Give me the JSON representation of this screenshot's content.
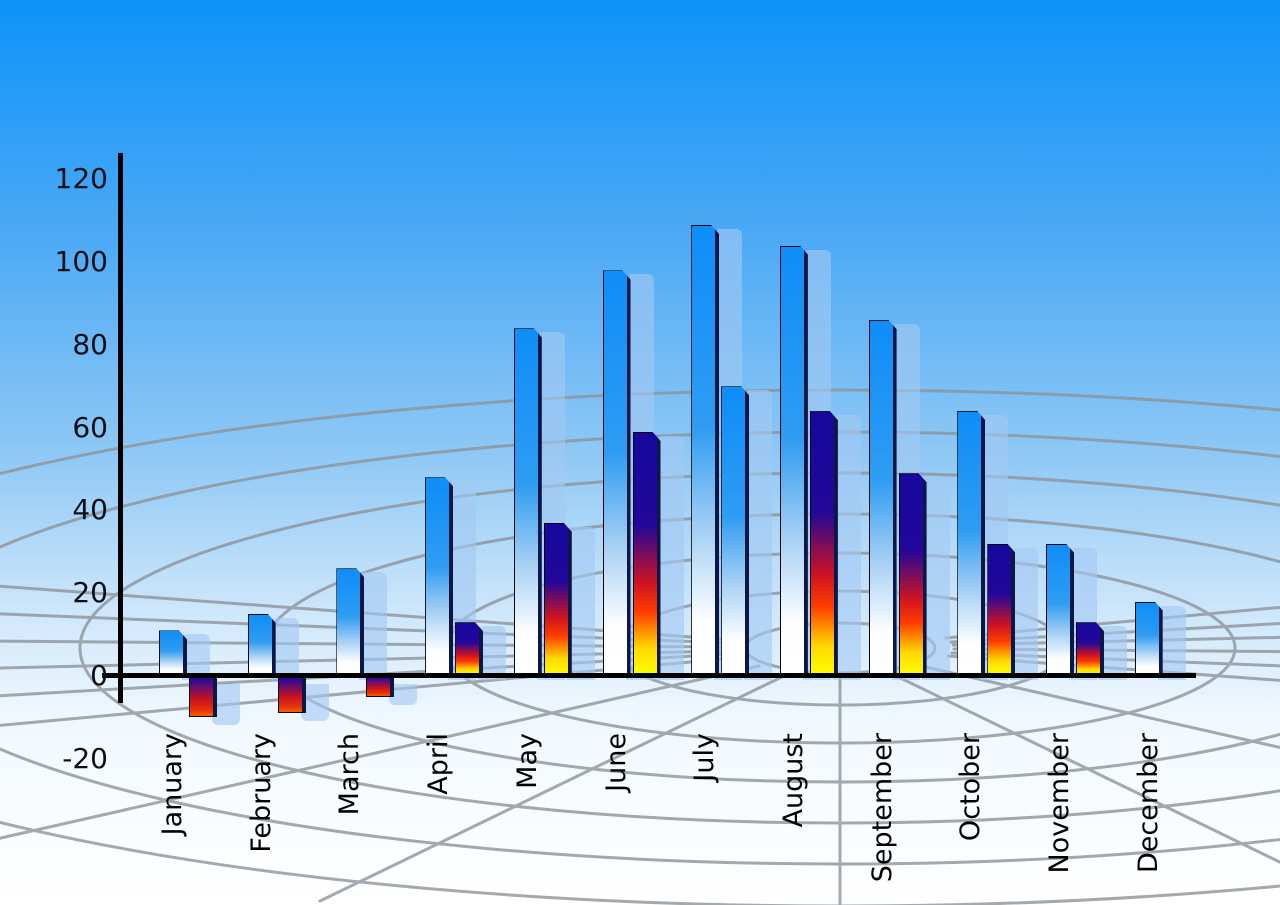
{
  "chart_data": {
    "type": "bar",
    "title": "",
    "xlabel": "",
    "ylabel": "",
    "categories": [
      "January",
      "February",
      "March",
      "April",
      "May",
      "June",
      "July",
      "August",
      "September",
      "October",
      "November",
      "December"
    ],
    "series": [
      {
        "name": "primary-blue-bars",
        "values": [
          11,
          15,
          26,
          48,
          84,
          98,
          109,
          104,
          86,
          64,
          32,
          18
        ]
      },
      {
        "name": "secondary-accent-bars",
        "values": [
          -10,
          -9,
          -5,
          13,
          37,
          59,
          70,
          64,
          49,
          32,
          13,
          null
        ]
      }
    ],
    "secondary_bar_styles": [
      "negative",
      "negative",
      "negative",
      "fire",
      "fire",
      "fire",
      "blue",
      "fire",
      "fire",
      "fire",
      "fire",
      "none"
    ],
    "yticks": [
      120,
      100,
      80,
      60,
      40,
      20,
      0,
      -20
    ],
    "ytick_labels": [
      "120",
      "100",
      "80",
      "60",
      "40",
      "20",
      "0",
      "-20"
    ],
    "ylim": [
      -20,
      120
    ],
    "legend_position": "none",
    "grid": "curved gray perspective grid over sky gradient",
    "shadow_bars": "translucent light-blue copy offset right of every bar"
  },
  "colors": {
    "sky_top": "#0d93fa",
    "sky_bottom": "#ffffff",
    "bar_blue_top": "#0e8df8",
    "bar_blue_bottom": "#ffffff",
    "bar_fire_top": "#17089d",
    "bar_fire_mid": "#cf1322",
    "bar_fire_bottom": "#fbff00",
    "bar_negative_top": "#17089d",
    "bar_negative_bottom": "#f55f00",
    "bar_edge_dark": "#0c1747",
    "shadow_bar": "rgba(163,200,242,0.62)",
    "grid_line": "#8d949b",
    "axis_line": "#000000",
    "tick_text": "#0c0f16",
    "month_text": "#000000"
  }
}
